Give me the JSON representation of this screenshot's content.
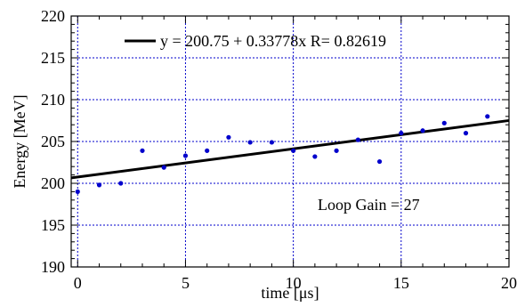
{
  "chart_data": {
    "type": "scatter",
    "xlabel": "time [μs]",
    "ylabel": "Energy [MeV]",
    "xlim": [
      -0.3,
      20
    ],
    "ylim": [
      190,
      220
    ],
    "x_ticks": [
      0,
      5,
      10,
      15,
      20
    ],
    "y_ticks": [
      190,
      195,
      200,
      205,
      210,
      215,
      220
    ],
    "x_tick_labels": [
      "0",
      "5",
      "10",
      "15",
      "20"
    ],
    "y_tick_labels": [
      "190",
      "195",
      "200",
      "205",
      "210",
      "215",
      "220"
    ],
    "grid": true,
    "series": [
      {
        "x": [
          0,
          1,
          2,
          3,
          4,
          5,
          6,
          7,
          8,
          9,
          10,
          11,
          12,
          13,
          14,
          15,
          16,
          17,
          18,
          19
        ],
        "y": [
          199.0,
          199.8,
          200.0,
          203.9,
          201.9,
          203.3,
          203.9,
          205.5,
          204.9,
          204.9,
          203.9,
          203.2,
          203.9,
          205.2,
          202.6,
          206.0,
          206.3,
          207.2,
          206.0,
          208.0
        ]
      }
    ],
    "fit": {
      "intercept": 200.75,
      "slope": 0.33778,
      "x_range": [
        -0.3,
        20
      ]
    },
    "legend": {
      "label": "y = 200.75 + 0.33778x R= 0.82619",
      "position": "top-center"
    },
    "annotation": "Loop Gain = 27",
    "colors": {
      "points": "#0000cc",
      "grid": "#0000cc",
      "fit_line": "#000000",
      "axes": "#000000"
    }
  }
}
